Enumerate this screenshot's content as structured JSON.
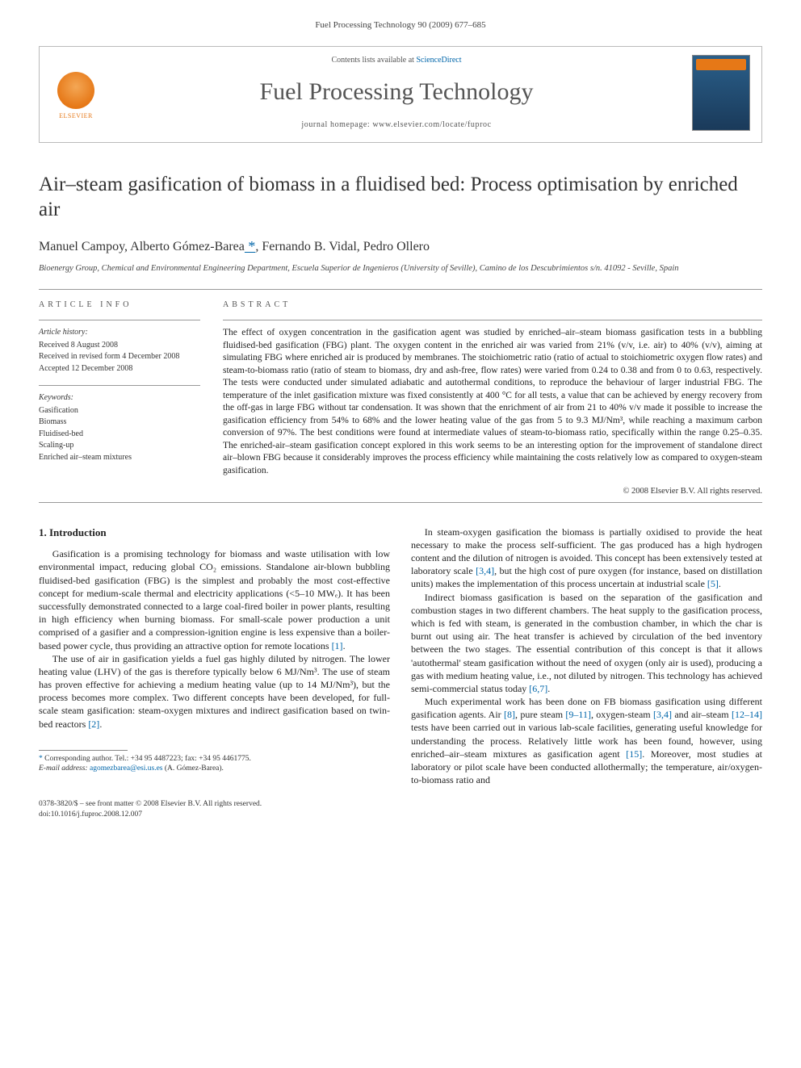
{
  "running_head": "Fuel Processing Technology 90 (2009) 677–685",
  "header": {
    "contents_prefix": "Contents lists available at ",
    "contents_link": "ScienceDirect",
    "journal_title": "Fuel Processing Technology",
    "homepage_prefix": "journal homepage: ",
    "homepage_url": "www.elsevier.com/locate/fuproc",
    "publisher": "ELSEVIER"
  },
  "article": {
    "title": "Air–steam gasification of biomass in a fluidised bed: Process optimisation by enriched air",
    "authors_html": "Manuel Campoy, Alberto Gómez-Barea",
    "author_after_star": ", Fernando B. Vidal, Pedro Ollero",
    "affiliation": "Bioenergy Group, Chemical and Environmental Engineering Department, Escuela Superior de Ingenieros (University of Seville), Camino de los Descubrimientos s/n. 41092 - Seville, Spain"
  },
  "info": {
    "head": "ARTICLE INFO",
    "history_label": "Article history:",
    "received": "Received 8 August 2008",
    "revised": "Received in revised form 4 December 2008",
    "accepted": "Accepted 12 December 2008",
    "keywords_label": "Keywords:",
    "keywords": [
      "Gasification",
      "Biomass",
      "Fluidised-bed",
      "Scaling-up",
      "Enriched air–steam mixtures"
    ]
  },
  "abstract": {
    "head": "ABSTRACT",
    "text": "The effect of oxygen concentration in the gasification agent was studied by enriched–air–steam biomass gasification tests in a bubbling fluidised-bed gasification (FBG) plant. The oxygen content in the enriched air was varied from 21% (v/v, i.e. air) to 40% (v/v), aiming at simulating FBG where enriched air is produced by membranes. The stoichiometric ratio (ratio of actual to stoichiometric oxygen flow rates) and steam-to-biomass ratio (ratio of steam to biomass, dry and ash-free, flow rates) were varied from 0.24 to 0.38 and from 0 to 0.63, respectively. The tests were conducted under simulated adiabatic and autothermal conditions, to reproduce the behaviour of larger industrial FBG. The temperature of the inlet gasification mixture was fixed consistently at 400 °C for all tests, a value that can be achieved by energy recovery from the off-gas in large FBG without tar condensation. It was shown that the enrichment of air from 21 to 40% v/v made it possible to increase the gasification efficiency from 54% to 68% and the lower heating value of the gas from 5 to 9.3 MJ/Nm³, while reaching a maximum carbon conversion of 97%. The best conditions were found at intermediate values of steam-to-biomass ratio, specifically within the range 0.25–0.35. The enriched-air–steam gasification concept explored in this work seems to be an interesting option for the improvement of standalone direct air–blown FBG because it considerably improves the process efficiency while maintaining the costs relatively low as compared to oxygen-steam gasification.",
    "copyright": "© 2008 Elsevier B.V. All rights reserved."
  },
  "body": {
    "section_heading": "1. Introduction",
    "p1": "Gasification is a promising technology for biomass and waste utilisation with low environmental impact, reducing global CO₂ emissions. Standalone air-blown bubbling fluidised-bed gasification (FBG) is the simplest and probably the most cost-effective concept for medium-scale thermal and electricity applications (<5–10 MWₑ). It has been successfully demonstrated connected to a large coal-fired boiler in power plants, resulting in high efficiency when burning biomass. For small-scale power production a unit comprised of a gasifier and a compression-ignition engine is less expensive than a boiler-based power cycle, thus providing an attractive option for remote locations ",
    "p1_ref": "[1]",
    "p1_end": ".",
    "p2": "The use of air in gasification yields a fuel gas highly diluted by nitrogen. The lower heating value (LHV) of the gas is therefore typically below 6 MJ/Nm³. The use of steam has proven effective for achieving a medium heating value (up to 14 MJ/Nm³), but the process becomes more complex. Two different concepts have been developed, for full-scale steam gasification: steam-oxygen mixtures and indirect gasification based on twin-bed reactors ",
    "p2_ref": "[2]",
    "p2_end": ".",
    "p3a": "In steam-oxygen gasification the biomass is partially oxidised to provide the heat necessary to make the process self-sufficient. The gas produced has a high hydrogen content and the dilution of nitrogen is avoided. This concept has been extensively tested at laboratory scale ",
    "p3_ref1": "[3,4]",
    "p3b": ", but the high cost of pure oxygen (for instance, based on distillation units) makes the implementation of this process uncertain at industrial scale ",
    "p3_ref2": "[5]",
    "p3_end": ".",
    "p4a": "Indirect biomass gasification is based on the separation of the gasification and combustion stages in two different chambers. The heat supply to the gasification process, which is fed with steam, is generated in the combustion chamber, in which the char is burnt out using air. The heat transfer is achieved by circulation of the bed inventory between the two stages. The essential contribution of this concept is that it allows 'autothermal' steam gasification without the need of oxygen (only air is used), producing a gas with medium heating value, i.e., not diluted by nitrogen. This technology has achieved semi-commercial status today ",
    "p4_ref": "[6,7]",
    "p4_end": ".",
    "p5a": "Much experimental work has been done on FB biomass gasification using different gasification agents. Air ",
    "p5_ref1": "[8]",
    "p5b": ", pure steam ",
    "p5_ref2": "[9–11]",
    "p5c": ", oxygen-steam ",
    "p5_ref3": "[3,4]",
    "p5d": " and air–steam ",
    "p5_ref4": "[12–14]",
    "p5e": " tests have been carried out in various lab-scale facilities, generating useful knowledge for understanding the process. Relatively little work has been found, however, using enriched–air–steam mixtures as gasification agent ",
    "p5_ref5": "[15]",
    "p5f": ". Moreover, most studies at laboratory or pilot scale have been conducted allothermally; the temperature, air/oxygen-to-biomass ratio and"
  },
  "footnote": {
    "corr_label": "Corresponding author. Tel.: +34 95 4487223; fax: +34 95 4461775.",
    "email_label": "E-mail address:",
    "email": "agomezbarea@esi.us.es",
    "email_who": "(A. Gómez-Barea)."
  },
  "footer": {
    "line1": "0378-3820/$ – see front matter © 2008 Elsevier B.V. All rights reserved.",
    "line2": "doi:10.1016/j.fuproc.2008.12.007"
  },
  "colors": {
    "link": "#0066aa",
    "elsevier_orange": "#e67817",
    "rule": "#999",
    "text": "#222"
  }
}
